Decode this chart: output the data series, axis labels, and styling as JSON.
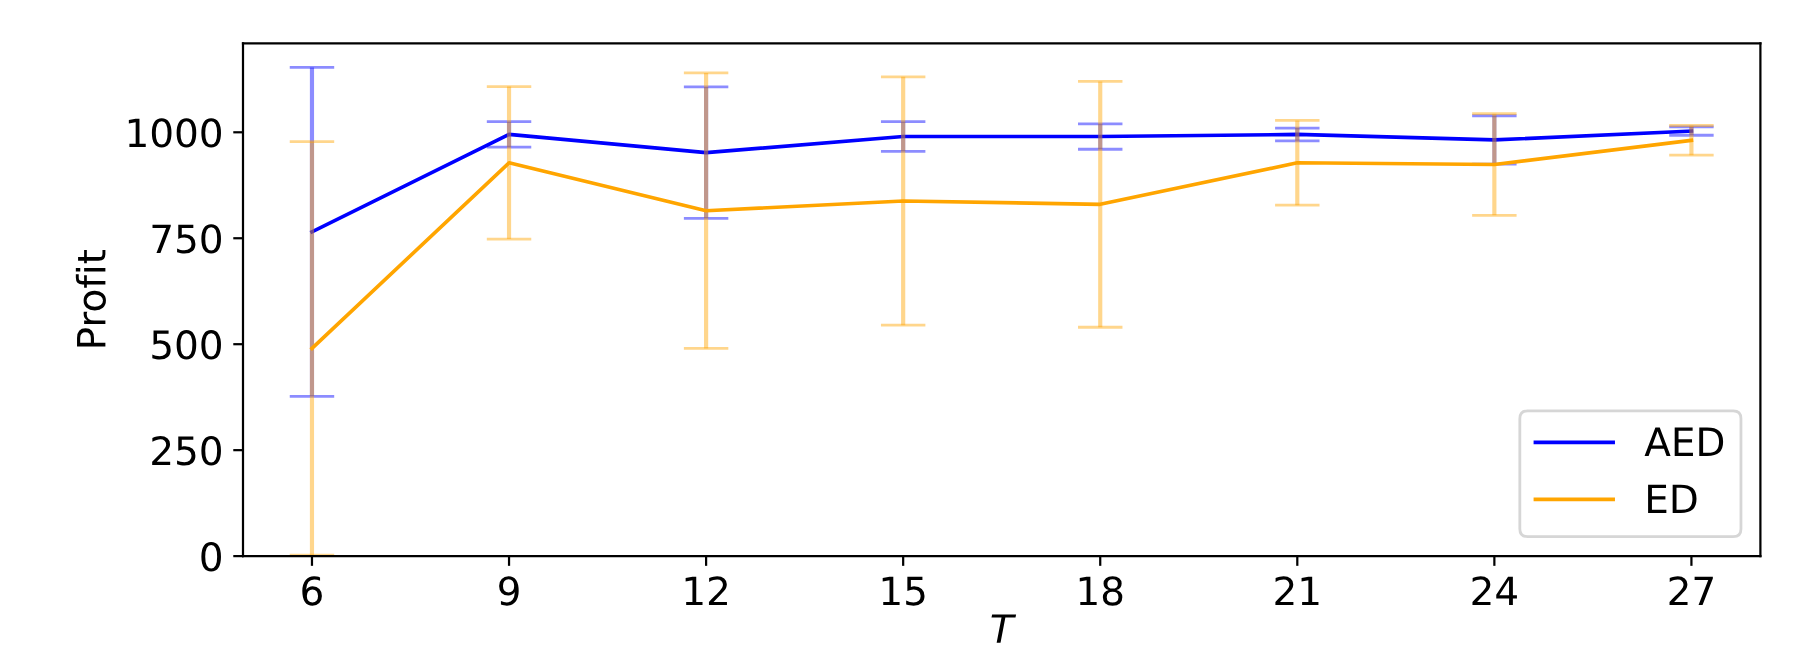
{
  "chart_data": {
    "type": "line",
    "xlabel": "T",
    "ylabel": "Profit",
    "x": [
      6,
      9,
      12,
      15,
      18,
      21,
      24,
      27
    ],
    "series": [
      {
        "name": "AED",
        "color": "#0000ff",
        "values": [
          765,
          995,
          952,
          990,
          990,
          995,
          982,
          1003
        ],
        "errors": [
          388,
          30,
          155,
          35,
          30,
          15,
          57,
          10
        ]
      },
      {
        "name": "ED",
        "color": "#ffa500",
        "values": [
          490,
          928,
          815,
          838,
          830,
          928,
          924,
          981
        ],
        "errors": [
          488,
          180,
          325,
          293,
          290,
          100,
          120,
          35
        ]
      }
    ],
    "xlim": [
      4.95,
      28.05
    ],
    "ylim": [
      0,
      1210
    ],
    "xticks": [
      6,
      9,
      12,
      15,
      18,
      21,
      24,
      27
    ],
    "yticks": [
      0,
      250,
      500,
      750,
      1000
    ],
    "legend": "lower right",
    "grid": false
  }
}
